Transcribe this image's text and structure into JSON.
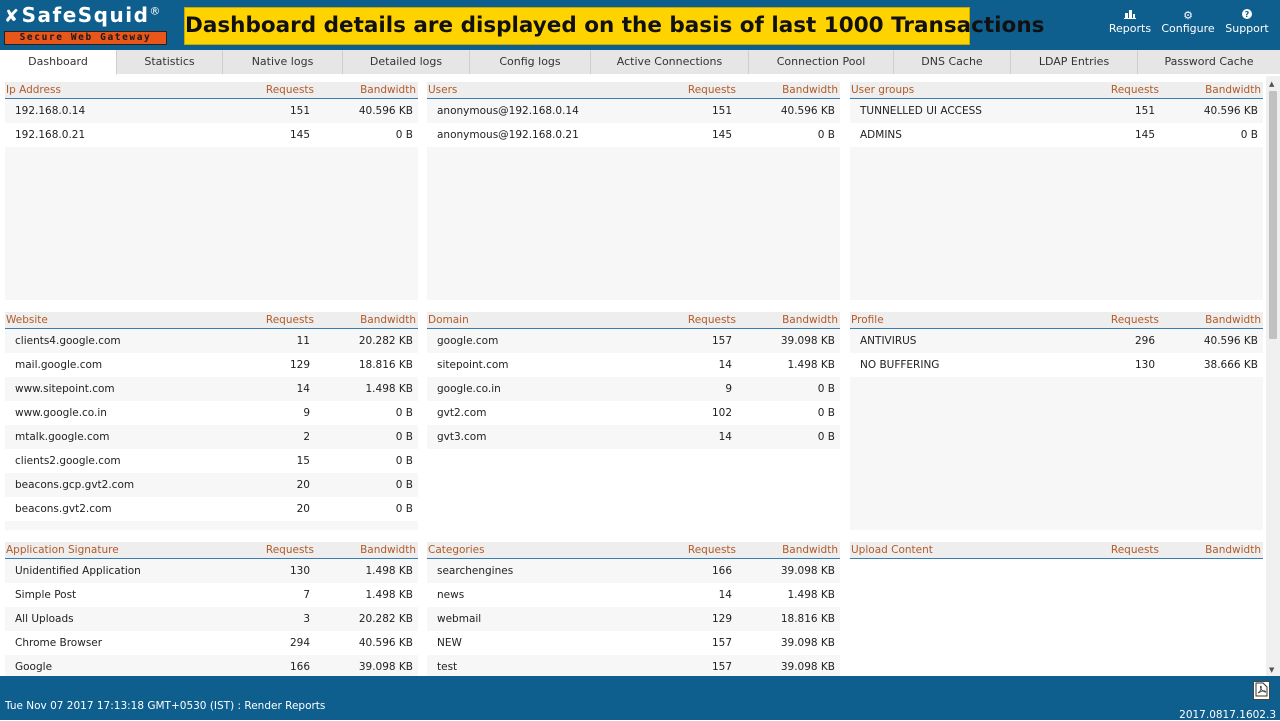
{
  "header": {
    "logo_text": "SafeSquid",
    "logo_reg": "®",
    "logo_tagline": "Secure Web Gateway",
    "banner": "Dashboard details are displayed on the basis of last 1000 Transactions",
    "nav": [
      {
        "label": "Reports",
        "icon": "▆▃▇",
        "icon_name": "reports-icon"
      },
      {
        "label": "Configure",
        "icon": "⚙",
        "icon_name": "gear-icon"
      },
      {
        "label": "Support",
        "icon": "❓",
        "icon_name": "help-icon"
      }
    ]
  },
  "tabs": [
    "Dashboard",
    "Statistics",
    "Native logs",
    "Detailed logs",
    "Config logs",
    "Active Connections",
    "Connection Pool",
    "DNS Cache",
    "LDAP Entries",
    "Password Cache"
  ],
  "active_tab": "Dashboard",
  "panels": {
    "ip": {
      "headers": [
        "Ip Address",
        "Requests",
        "Bandwidth"
      ],
      "rows": [
        [
          "192.168.0.14",
          "151",
          "40.596 KB"
        ],
        [
          "192.168.0.21",
          "145",
          "0 B"
        ]
      ]
    },
    "users": {
      "headers": [
        "Users",
        "Requests",
        "Bandwidth"
      ],
      "rows": [
        [
          "anonymous@192.168.0.14",
          "151",
          "40.596 KB"
        ],
        [
          "anonymous@192.168.0.21",
          "145",
          "0 B"
        ]
      ]
    },
    "groups": {
      "headers": [
        "User groups",
        "Requests",
        "Bandwidth"
      ],
      "rows": [
        [
          "TUNNELLED UI ACCESS",
          "151",
          "40.596 KB"
        ],
        [
          "ADMINS",
          "145",
          "0 B"
        ]
      ]
    },
    "website": {
      "headers": [
        "Website",
        "Requests",
        "Bandwidth"
      ],
      "rows": [
        [
          "clients4.google.com",
          "11",
          "20.282 KB"
        ],
        [
          "mail.google.com",
          "129",
          "18.816 KB"
        ],
        [
          "www.sitepoint.com",
          "14",
          "1.498 KB"
        ],
        [
          "www.google.co.in",
          "9",
          "0 B"
        ],
        [
          "mtalk.google.com",
          "2",
          "0 B"
        ],
        [
          "clients2.google.com",
          "15",
          "0 B"
        ],
        [
          "beacons.gcp.gvt2.com",
          "20",
          "0 B"
        ],
        [
          "beacons.gvt2.com",
          "20",
          "0 B"
        ]
      ]
    },
    "domain": {
      "headers": [
        "Domain",
        "Requests",
        "Bandwidth"
      ],
      "rows": [
        [
          "google.com",
          "157",
          "39.098 KB"
        ],
        [
          "sitepoint.com",
          "14",
          "1.498 KB"
        ],
        [
          "google.co.in",
          "9",
          "0 B"
        ],
        [
          "gvt2.com",
          "102",
          "0 B"
        ],
        [
          "gvt3.com",
          "14",
          "0 B"
        ]
      ]
    },
    "profile": {
      "headers": [
        "Profile",
        "Requests",
        "Bandwidth"
      ],
      "rows": [
        [
          "ANTIVIRUS",
          "296",
          "40.596 KB"
        ],
        [
          "NO BUFFERING",
          "130",
          "38.666 KB"
        ]
      ]
    },
    "appsig": {
      "headers": [
        "Application Signature",
        "Requests",
        "Bandwidth"
      ],
      "rows": [
        [
          "Unidentified Application",
          "130",
          "1.498 KB"
        ],
        [
          "Simple Post",
          "7",
          "1.498 KB"
        ],
        [
          "All Uploads",
          "3",
          "20.282 KB"
        ],
        [
          "Chrome Browser",
          "294",
          "40.596 KB"
        ],
        [
          "Google",
          "166",
          "39.098 KB"
        ]
      ]
    },
    "categories": {
      "headers": [
        "Categories",
        "Requests",
        "Bandwidth"
      ],
      "rows": [
        [
          "searchengines",
          "166",
          "39.098 KB"
        ],
        [
          "news",
          "14",
          "1.498 KB"
        ],
        [
          "webmail",
          "129",
          "18.816 KB"
        ],
        [
          "NEW",
          "157",
          "39.098 KB"
        ],
        [
          "test",
          "157",
          "39.098 KB"
        ]
      ]
    },
    "upload": {
      "headers": [
        "Upload Content",
        "Requests",
        "Bandwidth"
      ],
      "rows": []
    }
  },
  "footer": {
    "status": "Tue Nov 07 2017 17:13:18 GMT+0530 (IST) : Render Reports",
    "version": "2017.0817.1602.3",
    "pdf_icon": "pdf-icon"
  },
  "colors": {
    "header_bg": "#0f5f8e",
    "banner_bg": "#ffd300",
    "logo_bar": "#e8561a",
    "column_header_text": "#b35a28",
    "header_rule": "#3a7db0"
  }
}
